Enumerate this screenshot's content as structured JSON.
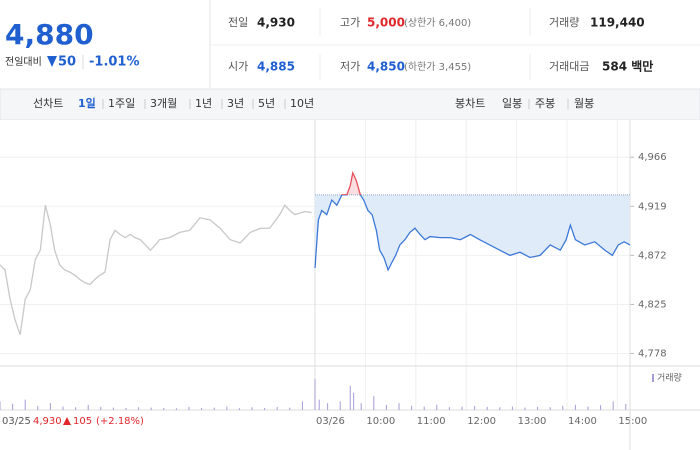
{
  "header": {
    "price": "4,880",
    "change_label": "전일대비",
    "change": "50",
    "change_pct": "-1.01%"
  },
  "quote": {
    "prev_close": {
      "label": "전일",
      "value": "4,930"
    },
    "high": {
      "label": "고가",
      "value": "5,000",
      "limit": "(상한가 6,400)"
    },
    "volume": {
      "label": "거래량",
      "value": "119,440"
    },
    "open": {
      "label": "시가",
      "value": "4,885"
    },
    "low": {
      "label": "저가",
      "value": "4,850",
      "limit": "(하한가 3,455)"
    },
    "amount": {
      "label": "거래대금",
      "value": "584 백만"
    }
  },
  "tabs": {
    "line_label": "선차트",
    "line": [
      "1일",
      "1주일",
      "3개월",
      "1년",
      "3년",
      "5년",
      "10년"
    ],
    "candle_label": "봉차트",
    "candle": [
      "일봉",
      "주봉",
      "월봉"
    ]
  },
  "chart_data": {
    "type": "line",
    "xlim": [
      15,
      765
    ],
    "ylim": [
      4767,
      4994
    ],
    "yticks": [
      {
        "value": 4966,
        "label": "4,966"
      },
      {
        "value": 4919,
        "label": "4,919"
      },
      {
        "value": 4872,
        "label": "4,872"
      },
      {
        "value": 4825,
        "label": "4,825"
      },
      {
        "value": 4778,
        "label": "4,778"
      }
    ],
    "xticks": [
      {
        "value": 390,
        "label": "03/26"
      },
      {
        "value": 450,
        "label": "10:00"
      },
      {
        "value": 510,
        "label": "11:00"
      },
      {
        "value": 570,
        "label": "12:00"
      },
      {
        "value": 630,
        "label": "13:00"
      },
      {
        "value": 690,
        "label": "14:00"
      },
      {
        "value": 750,
        "label": "15:00"
      }
    ],
    "reference_line": 4930,
    "series": [
      {
        "color": "#c8c8c8",
        "x": [
          15,
          21,
          27,
          33,
          39,
          45,
          51,
          57,
          63,
          69,
          75,
          80,
          86,
          92,
          98,
          104,
          110,
          116,
          122,
          128,
          134,
          140,
          146,
          152,
          158,
          164,
          170,
          176,
          182,
          188,
          194,
          200,
          205,
          217,
          229,
          241,
          253,
          265,
          277,
          289,
          301,
          313,
          325,
          336,
          348,
          354,
          360,
          366,
          378,
          386
        ],
        "values": [
          4863,
          4858,
          4830,
          4810,
          4796,
          4830,
          4839,
          4868,
          4877,
          4920,
          4901,
          4877,
          4863,
          4858,
          4856,
          4853,
          4849,
          4846,
          4844,
          4849,
          4853,
          4856,
          4887,
          4896,
          4892,
          4889,
          4892,
          4889,
          4887,
          4882,
          4877,
          4882,
          4887,
          4889,
          4894,
          4896,
          4908,
          4906,
          4898,
          4887,
          4884,
          4894,
          4898,
          4898,
          4911,
          4920,
          4915,
          4911,
          4914,
          4913
        ]
      },
      {
        "color": "#3b78d8",
        "above_color": "#e8505b",
        "x": [
          390,
          394,
          398,
          404,
          410,
          416,
          422,
          428,
          432,
          435,
          439,
          444,
          448,
          453,
          458,
          463,
          467,
          472,
          477,
          482,
          486,
          491,
          497,
          503,
          509,
          515,
          521,
          527,
          539,
          551,
          563,
          575,
          586,
          598,
          610,
          622,
          634,
          646,
          658,
          670,
          682,
          689,
          694,
          700,
          711,
          723,
          735,
          744,
          751,
          758,
          765
        ],
        "values": [
          4860,
          4906,
          4915,
          4911,
          4925,
          4920,
          4930,
          4930,
          4939,
          4951,
          4944,
          4930,
          4925,
          4915,
          4911,
          4896,
          4877,
          4870,
          4858,
          4866,
          4872,
          4882,
          4887,
          4894,
          4898,
          4892,
          4887,
          4890,
          4889,
          4889,
          4887,
          4892,
          4887,
          4882,
          4877,
          4872,
          4875,
          4870,
          4872,
          4882,
          4877,
          4887,
          4901,
          4887,
          4882,
          4885,
          4877,
          4872,
          4882,
          4885,
          4882
        ]
      }
    ],
    "volume": {
      "name": "거래량",
      "color": "#a99bd6",
      "vlim": [
        0,
        11000
      ],
      "x": [
        15,
        30,
        45,
        60,
        75,
        90,
        105,
        120,
        135,
        150,
        165,
        180,
        195,
        210,
        225,
        240,
        255,
        270,
        285,
        300,
        315,
        330,
        345,
        360,
        375,
        390,
        395,
        405,
        420,
        432,
        436,
        445,
        460,
        475,
        490,
        505,
        520,
        535,
        550,
        565,
        580,
        595,
        610,
        625,
        640,
        655,
        670,
        685,
        700,
        715,
        730,
        745,
        760
      ],
      "values": [
        2500,
        1800,
        3000,
        1200,
        2000,
        1000,
        800,
        1500,
        900,
        700,
        600,
        800,
        700,
        600,
        500,
        900,
        600,
        700,
        1000,
        500,
        800,
        600,
        900,
        700,
        2500,
        9000,
        3000,
        2000,
        2500,
        7000,
        5000,
        2000,
        4000,
        1500,
        2000,
        1200,
        1000,
        1500,
        800,
        1000,
        1200,
        900,
        800,
        1000,
        700,
        900,
        800,
        1200,
        1500,
        1000,
        1400,
        2500,
        1800
      ]
    },
    "prev_day": {
      "date": "03/25",
      "close": "4,930",
      "change": "105",
      "pct": "(+2.18%)"
    }
  }
}
